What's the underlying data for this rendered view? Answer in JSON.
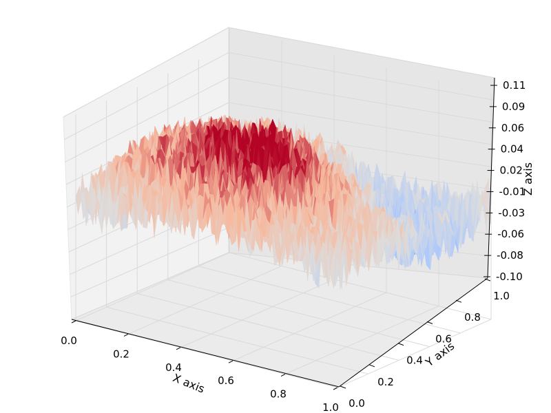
{
  "chart_data": {
    "type": "surface",
    "title": "",
    "xlabel": "X axis",
    "ylabel": "Y axis",
    "zlabel": "Z axis",
    "xlim": [
      0.0,
      1.0
    ],
    "ylim": [
      0.0,
      1.0
    ],
    "zlim": [
      -0.1,
      0.11
    ],
    "x_ticks": [
      "0.0",
      "0.2",
      "0.4",
      "0.6",
      "0.8",
      "1.0"
    ],
    "y_ticks": [
      "0.0",
      "0.2",
      "0.4",
      "0.6",
      "0.8",
      "1.0"
    ],
    "z_ticks": [
      "-0.10",
      "-0.08",
      "-0.06",
      "-0.03",
      "-0.01",
      "0.02",
      "0.04",
      "0.06",
      "0.09",
      "0.11"
    ],
    "colormap": "coolwarm",
    "colormap_stops": [
      "#3b4cc0",
      "#aac7fd",
      "#dddddd",
      "#f7b89c",
      "#b40426"
    ],
    "grid": true,
    "surface_description_z_by_xy": {
      "x": [
        0.0,
        0.2,
        0.4,
        0.6,
        0.8,
        1.0
      ],
      "y": [
        0.0,
        0.2,
        0.4,
        0.6,
        0.8,
        1.0
      ],
      "z": [
        [
          0.0,
          0.01,
          0.02,
          0.02,
          0.01,
          0.0
        ],
        [
          0.01,
          0.03,
          0.04,
          0.04,
          0.02,
          0.01
        ],
        [
          0.02,
          0.04,
          0.06,
          0.05,
          0.02,
          0.0
        ],
        [
          0.02,
          0.04,
          0.05,
          0.03,
          -0.01,
          -0.02
        ],
        [
          0.01,
          0.02,
          0.02,
          -0.01,
          -0.03,
          -0.01
        ],
        [
          0.0,
          0.01,
          0.0,
          -0.02,
          -0.01,
          0.0
        ]
      ]
    },
    "noise_amplitude": 0.03
  }
}
